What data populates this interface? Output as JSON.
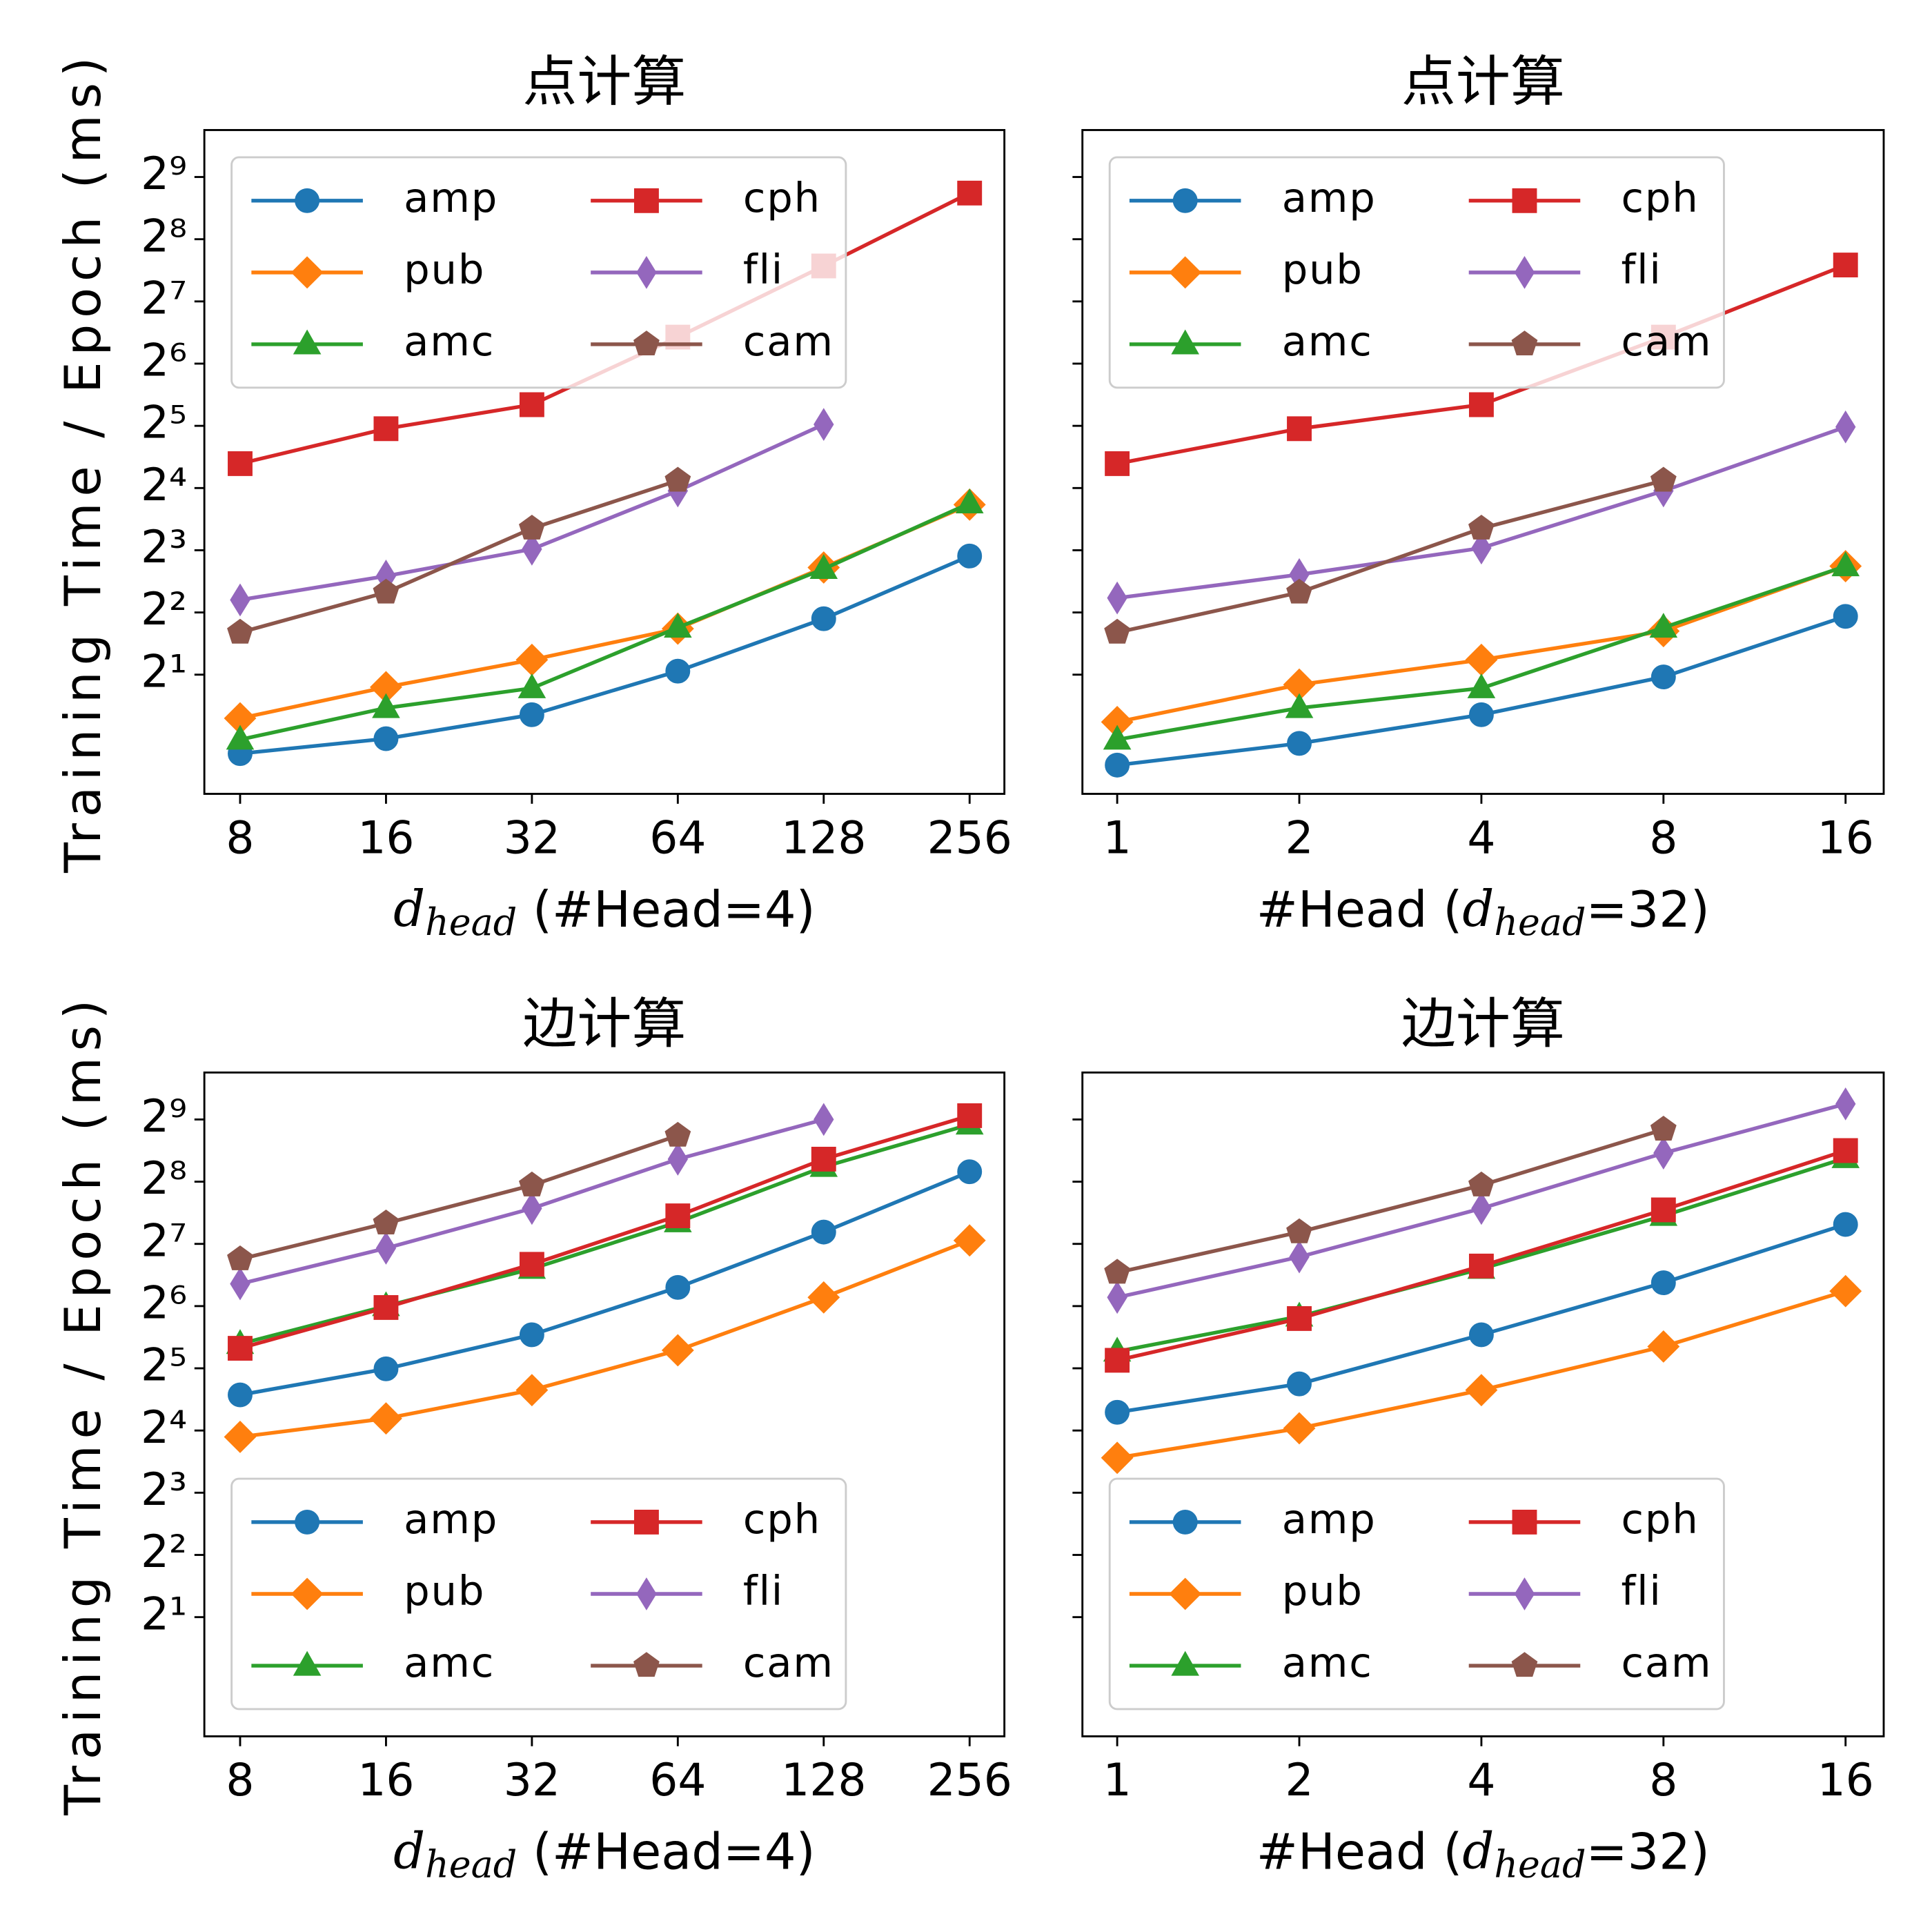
{
  "chart_data": [
    {
      "type": "line",
      "title": "点计算",
      "xlabel": [
        {
          "text": "d",
          "style": "italic"
        },
        {
          "text": "head",
          "style": "sub"
        },
        {
          "text": "  (#Head=4)"
        }
      ],
      "ylabel": "Training Time / Epoch (ms)",
      "x": [
        8,
        16,
        32,
        64,
        128,
        256
      ],
      "xscale": "log",
      "yscale": "log",
      "xlim": [
        6.75,
        302
      ],
      "ylim": [
        0.53,
        864
      ],
      "xticks": [
        8,
        16,
        32,
        64,
        128,
        256
      ],
      "yticks": [
        {
          "value": 2,
          "label": "2¹"
        },
        {
          "value": 4,
          "label": "2²"
        },
        {
          "value": 8,
          "label": "2³"
        },
        {
          "value": 16,
          "label": "2⁴"
        },
        {
          "value": 32,
          "label": "2⁵"
        },
        {
          "value": 64,
          "label": "2⁶"
        },
        {
          "value": 128,
          "label": "2⁷"
        },
        {
          "value": 256,
          "label": "2⁸"
        },
        {
          "value": 512,
          "label": "2⁹"
        }
      ],
      "show_ytick_labels": true,
      "legend": "upper left",
      "series": [
        {
          "name": "amp",
          "color": "#1f77b4",
          "marker": "o",
          "values": [
            0.83,
            0.98,
            1.28,
            2.08,
            3.73,
            7.5
          ]
        },
        {
          "name": "pub",
          "color": "#ff7f0e",
          "marker": "D",
          "values": [
            1.23,
            1.74,
            2.36,
            3.34,
            6.6,
            13.3
          ]
        },
        {
          "name": "amc",
          "color": "#2ca02c",
          "marker": "^",
          "values": [
            0.97,
            1.38,
            1.72,
            3.38,
            6.5,
            13.5
          ]
        },
        {
          "name": "cph",
          "color": "#d62728",
          "marker": "s",
          "values": [
            21,
            31,
            40.5,
            86,
            190,
            428
          ]
        },
        {
          "name": "fli",
          "color": "#9467bd",
          "marker": "d",
          "values": [
            4.6,
            6.0,
            8.1,
            15.5,
            32.5,
            null
          ]
        },
        {
          "name": "cam",
          "color": "#8c564b",
          "marker": "p",
          "values": [
            3.2,
            5.0,
            10.2,
            17.4,
            null,
            null
          ]
        }
      ]
    },
    {
      "type": "line",
      "title": "点计算",
      "xlabel": [
        {
          "text": "#Head ("
        },
        {
          "text": "d",
          "style": "italic"
        },
        {
          "text": "head",
          "style": "sub"
        },
        {
          "text": "=32)"
        }
      ],
      "x": [
        1,
        2,
        4,
        8,
        16
      ],
      "xscale": "log",
      "yscale": "log",
      "xlim": [
        0.876,
        18.5
      ],
      "ylim": [
        0.53,
        864
      ],
      "xticks": [
        1,
        2,
        4,
        8,
        16
      ],
      "yticks": [
        2,
        4,
        8,
        16,
        32,
        64,
        128,
        256,
        512
      ],
      "show_ytick_labels": false,
      "legend": "upper left",
      "series": [
        {
          "name": "amp",
          "color": "#1f77b4",
          "marker": "o",
          "values": [
            0.73,
            0.93,
            1.28,
            1.95,
            3.83
          ]
        },
        {
          "name": "pub",
          "color": "#ff7f0e",
          "marker": "D",
          "values": [
            1.18,
            1.79,
            2.36,
            3.25,
            6.7
          ]
        },
        {
          "name": "amc",
          "color": "#2ca02c",
          "marker": "^",
          "values": [
            0.97,
            1.38,
            1.72,
            3.38,
            6.7
          ]
        },
        {
          "name": "cph",
          "color": "#d62728",
          "marker": "s",
          "values": [
            21,
            31,
            40.5,
            86,
            192
          ]
        },
        {
          "name": "fli",
          "color": "#9467bd",
          "marker": "d",
          "values": [
            4.7,
            6.1,
            8.2,
            15.5,
            31.6
          ]
        },
        {
          "name": "cam",
          "color": "#8c564b",
          "marker": "p",
          "values": [
            3.2,
            5.0,
            10.2,
            17.4,
            null
          ]
        }
      ]
    },
    {
      "type": "line",
      "title": "边计算",
      "xlabel": [
        {
          "text": "d",
          "style": "italic"
        },
        {
          "text": "head",
          "style": "sub"
        },
        {
          "text": "  (#Head=4)"
        }
      ],
      "ylabel": "Training Time / Epoch (ms)",
      "x": [
        8,
        16,
        32,
        64,
        128,
        256
      ],
      "xscale": "log",
      "yscale": "log",
      "xlim": [
        6.75,
        302
      ],
      "ylim": [
        0.53,
        864
      ],
      "xticks": [
        8,
        16,
        32,
        64,
        128,
        256
      ],
      "yticks": [
        {
          "value": 2,
          "label": "2¹"
        },
        {
          "value": 4,
          "label": "2²"
        },
        {
          "value": 8,
          "label": "2³"
        },
        {
          "value": 16,
          "label": "2⁴"
        },
        {
          "value": 32,
          "label": "2⁵"
        },
        {
          "value": 64,
          "label": "2⁶"
        },
        {
          "value": 128,
          "label": "2⁷"
        },
        {
          "value": 256,
          "label": "2⁸"
        },
        {
          "value": 512,
          "label": "2⁹"
        }
      ],
      "show_ytick_labels": true,
      "legend": "lower left",
      "series": [
        {
          "name": "amp",
          "color": "#1f77b4",
          "marker": "o",
          "values": [
            23.8,
            31.8,
            46.5,
            78.8,
            146,
            286
          ]
        },
        {
          "name": "pub",
          "color": "#ff7f0e",
          "marker": "D",
          "values": [
            14.9,
            18.3,
            25.1,
            39.1,
            70.5,
            133
          ]
        },
        {
          "name": "amc",
          "color": "#2ca02c",
          "marker": "^",
          "values": [
            42,
            64,
            97,
            163,
            302,
            484
          ]
        },
        {
          "name": "cph",
          "color": "#d62728",
          "marker": "s",
          "values": [
            40,
            63,
            102,
            175,
            329,
            534
          ]
        },
        {
          "name": "fli",
          "color": "#9467bd",
          "marker": "d",
          "values": [
            82,
            122,
            190,
            329,
            512,
            null
          ]
        },
        {
          "name": "cam",
          "color": "#8c564b",
          "marker": "p",
          "values": [
            108,
            161,
            246,
            428,
            null,
            null
          ]
        }
      ]
    },
    {
      "type": "line",
      "title": "边计算",
      "xlabel": [
        {
          "text": "#Head ("
        },
        {
          "text": "d",
          "style": "italic"
        },
        {
          "text": "head",
          "style": "sub"
        },
        {
          "text": "=32)"
        }
      ],
      "x": [
        1,
        2,
        4,
        8,
        16
      ],
      "xscale": "log",
      "yscale": "log",
      "xlim": [
        0.876,
        18.5
      ],
      "ylim": [
        0.53,
        864
      ],
      "xticks": [
        1,
        2,
        4,
        8,
        16
      ],
      "yticks": [
        2,
        4,
        8,
        16,
        32,
        64,
        128,
        256,
        512
      ],
      "show_ytick_labels": false,
      "legend": "lower left",
      "series": [
        {
          "name": "amp",
          "color": "#1f77b4",
          "marker": "o",
          "values": [
            19.6,
            26.9,
            46.5,
            83,
            159
          ]
        },
        {
          "name": "pub",
          "color": "#ff7f0e",
          "marker": "D",
          "values": [
            11.8,
            16.4,
            25.1,
            40.8,
            75.6
          ]
        },
        {
          "name": "amc",
          "color": "#2ca02c",
          "marker": "^",
          "values": [
            38.6,
            57,
            97,
            175,
            333
          ]
        },
        {
          "name": "cph",
          "color": "#d62728",
          "marker": "s",
          "values": [
            35,
            55.7,
            100,
            187,
            362
          ]
        },
        {
          "name": "fli",
          "color": "#9467bd",
          "marker": "d",
          "values": [
            70.5,
            110.7,
            190,
            352,
            609
          ]
        },
        {
          "name": "cam",
          "color": "#8c564b",
          "marker": "p",
          "values": [
            93,
            146,
            246,
            458,
            null
          ]
        }
      ]
    }
  ]
}
